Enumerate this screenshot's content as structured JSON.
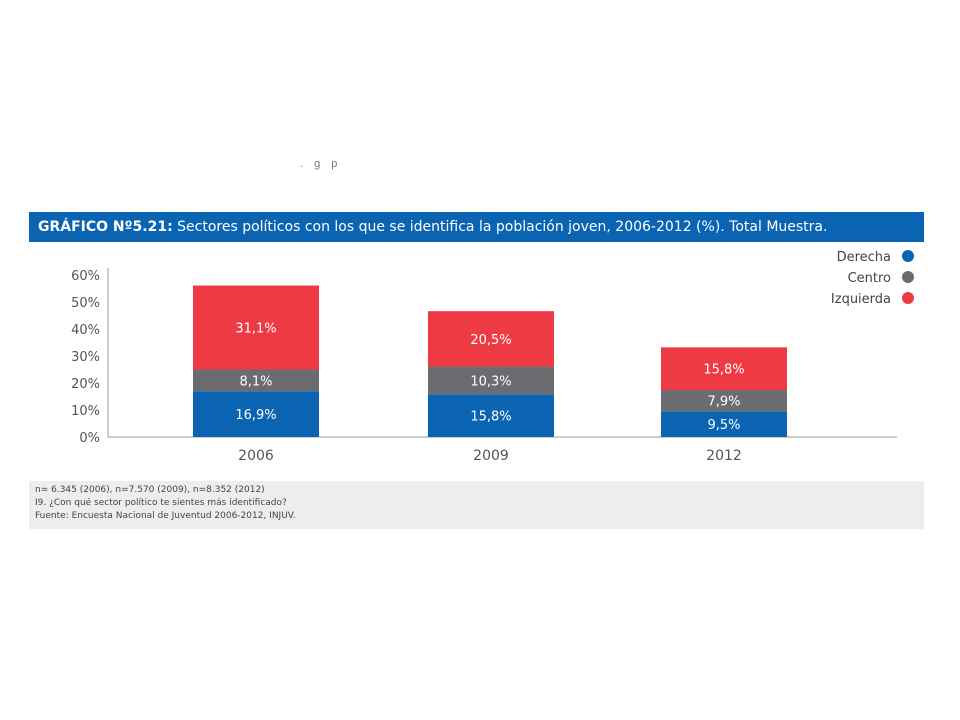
{
  "residue_text": ". g p",
  "title": {
    "prefix": "GRÁFICO Nº5.21:",
    "text": " Sectores políticos con los que se identifica la población joven, 2006-2012 (%). Total Muestra."
  },
  "colors": {
    "title_bar": "#0a64b1",
    "Derecha": "#0a64b1",
    "Centro": "#6c6c70",
    "Izquierda": "#ee3a43",
    "notes_bg": "#ededed"
  },
  "chart_data": {
    "type": "bar",
    "stacked": true,
    "categories": [
      "2006",
      "2009",
      "2012"
    ],
    "series": [
      {
        "name": "Derecha",
        "values": [
          16.9,
          15.8,
          9.5
        ],
        "labels": [
          "16,9%",
          "15,8%",
          "9,5%"
        ]
      },
      {
        "name": "Centro",
        "values": [
          8.1,
          10.3,
          7.9
        ],
        "labels": [
          "8,1%",
          "10,3%",
          "7,9%"
        ]
      },
      {
        "name": "Izquierda",
        "values": [
          31.1,
          20.5,
          15.8
        ],
        "labels": [
          "31,1%",
          "20,5%",
          "15,8%"
        ]
      }
    ],
    "yticks": [
      "0%",
      "10%",
      "20%",
      "30%",
      "40%",
      "50%",
      "60%"
    ],
    "ylim": [
      0,
      60
    ],
    "legend_position": "top-right",
    "grid": false
  },
  "notes": [
    "n= 6.345 (2006), n=7.570 (2009), n=8.352 (2012)",
    "I9. ¿Con qué sector político te sientes más identificado?",
    "Fuente: Encuesta Nacional de Juventud  2006-2012, INJUV."
  ]
}
